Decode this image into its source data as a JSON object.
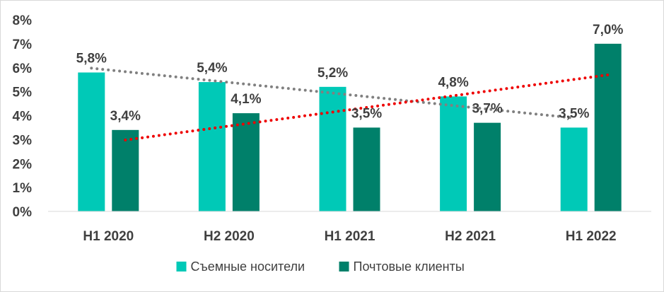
{
  "chart_data": {
    "type": "bar",
    "categories": [
      "H1 2020",
      "H2 2020",
      "H1 2021",
      "H2 2021",
      "H1 2022"
    ],
    "series": [
      {
        "name": "Съемные носители",
        "values": [
          5.8,
          5.4,
          5.2,
          4.8,
          3.5
        ],
        "labels": [
          "5,8%",
          "5,4%",
          "5,2%",
          "4,8%",
          "3,5%"
        ],
        "color": "#00c9b7",
        "trendline_color": "#808080"
      },
      {
        "name": "Почтовые клиенты",
        "values": [
          3.4,
          4.1,
          3.5,
          3.7,
          7.0
        ],
        "labels": [
          "3,4%",
          "4,1%",
          "3,5%",
          "3,7%",
          "7,0%"
        ],
        "color": "#00806a",
        "trendline_color": "#ee0000"
      }
    ],
    "ylim": [
      0,
      8
    ],
    "yticks": [
      "0%",
      "1%",
      "2%",
      "3%",
      "4%",
      "5%",
      "6%",
      "7%",
      "8%"
    ],
    "trendlines": "linear, dotted",
    "legend_position": "bottom",
    "grid": false
  }
}
